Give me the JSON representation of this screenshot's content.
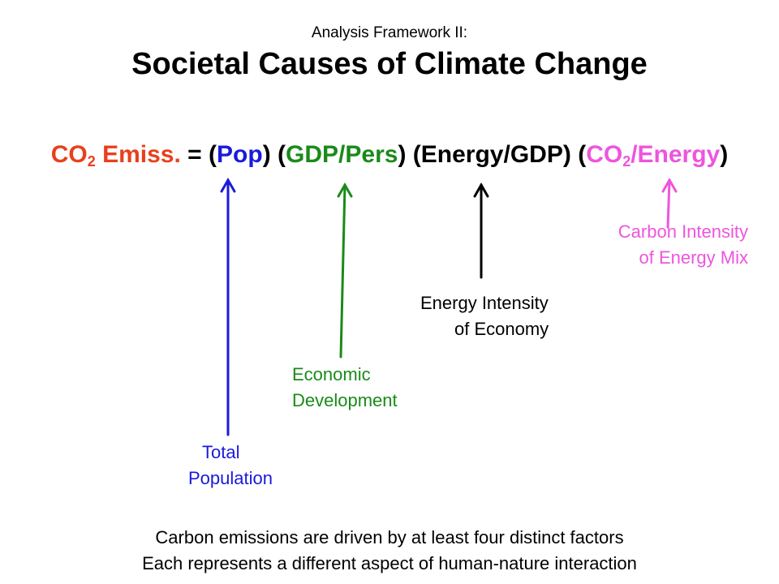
{
  "header": {
    "subtitle": "Analysis Framework II:",
    "title": "Societal Causes of Climate Change"
  },
  "equation": {
    "lhs": {
      "main": "CO",
      "sub": "2",
      "rest": " Emiss.",
      "color": "#e8401c"
    },
    "equals": " = ",
    "terms": [
      {
        "open": "(",
        "inner": "Pop",
        "close": ")",
        "color": "#1a1adc"
      },
      {
        "open": "(",
        "inner": "GDP/Pers",
        "close": ")",
        "color": "#1a8a1a"
      },
      {
        "open": "(",
        "inner": "Energy/GDP",
        "close": ")",
        "color": "#000000"
      },
      {
        "open": "(",
        "inner_main": "CO",
        "inner_sub": "2",
        "inner_rest": "/Energy",
        "close": ")",
        "color": "#ee55dd"
      }
    ]
  },
  "labels": {
    "population": {
      "line1": "Total",
      "line2": "Population",
      "color": "#1a1adc"
    },
    "economic": {
      "line1": "Economic",
      "line2": "Development",
      "color": "#1a8a1a"
    },
    "energy": {
      "line1": "Energy Intensity",
      "line2": "of Economy",
      "color": "#000000"
    },
    "carbon": {
      "line1": "Carbon Intensity",
      "line2": "of Energy Mix",
      "color": "#ee55dd"
    }
  },
  "footer": {
    "line1": "Carbon emissions are driven by at least four distinct factors",
    "line2": "Each represents a different aspect of human-nature interaction"
  }
}
